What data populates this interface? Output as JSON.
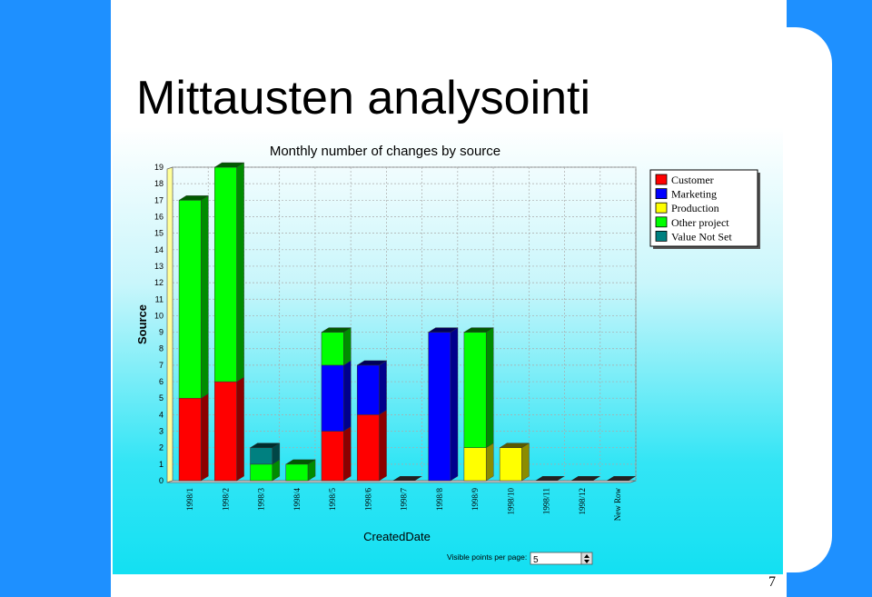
{
  "slide": {
    "title": "Mittausten analysointi",
    "page_number": "7"
  },
  "controls": {
    "visible_points_label": "Visible points per page:",
    "visible_points_value": "5"
  },
  "chart_data": {
    "type": "bar",
    "stacked": true,
    "title": "Monthly number of changes by source",
    "xlabel": "CreatedDate",
    "ylabel": "Source",
    "ylim": [
      0,
      19
    ],
    "yticks": [
      0,
      1,
      2,
      3,
      4,
      5,
      6,
      7,
      8,
      9,
      10,
      11,
      12,
      13,
      14,
      15,
      16,
      17,
      18,
      19
    ],
    "grid": true,
    "legend_position": "top-right",
    "categories": [
      "1998/1",
      "1998/2",
      "1998/3",
      "1998/4",
      "1998/5",
      "1998/6",
      "1998/7",
      "1998/8",
      "1998/9",
      "1998/10",
      "1998/11",
      "1998/12",
      "New Row"
    ],
    "series": [
      {
        "name": "Customer",
        "color": "#ff0000",
        "values": [
          5,
          6,
          0,
          0,
          3,
          4,
          0,
          0,
          0,
          0,
          0,
          0,
          0
        ]
      },
      {
        "name": "Marketing",
        "color": "#0000ff",
        "values": [
          0,
          0,
          0,
          0,
          4,
          3,
          0,
          9,
          0,
          0,
          0,
          0,
          0
        ]
      },
      {
        "name": "Production",
        "color": "#ffff00",
        "values": [
          0,
          0,
          0,
          0,
          0,
          0,
          0,
          0,
          2,
          2,
          0,
          0,
          0
        ]
      },
      {
        "name": "Other project",
        "color": "#00ff00",
        "values": [
          12,
          13,
          1,
          1,
          2,
          0,
          0,
          0,
          7,
          0,
          0,
          0,
          0
        ]
      },
      {
        "name": "Value Not Set",
        "color": "#008080",
        "values": [
          0,
          0,
          1,
          0,
          0,
          0,
          0,
          0,
          0,
          0,
          0,
          0,
          0
        ]
      }
    ]
  }
}
